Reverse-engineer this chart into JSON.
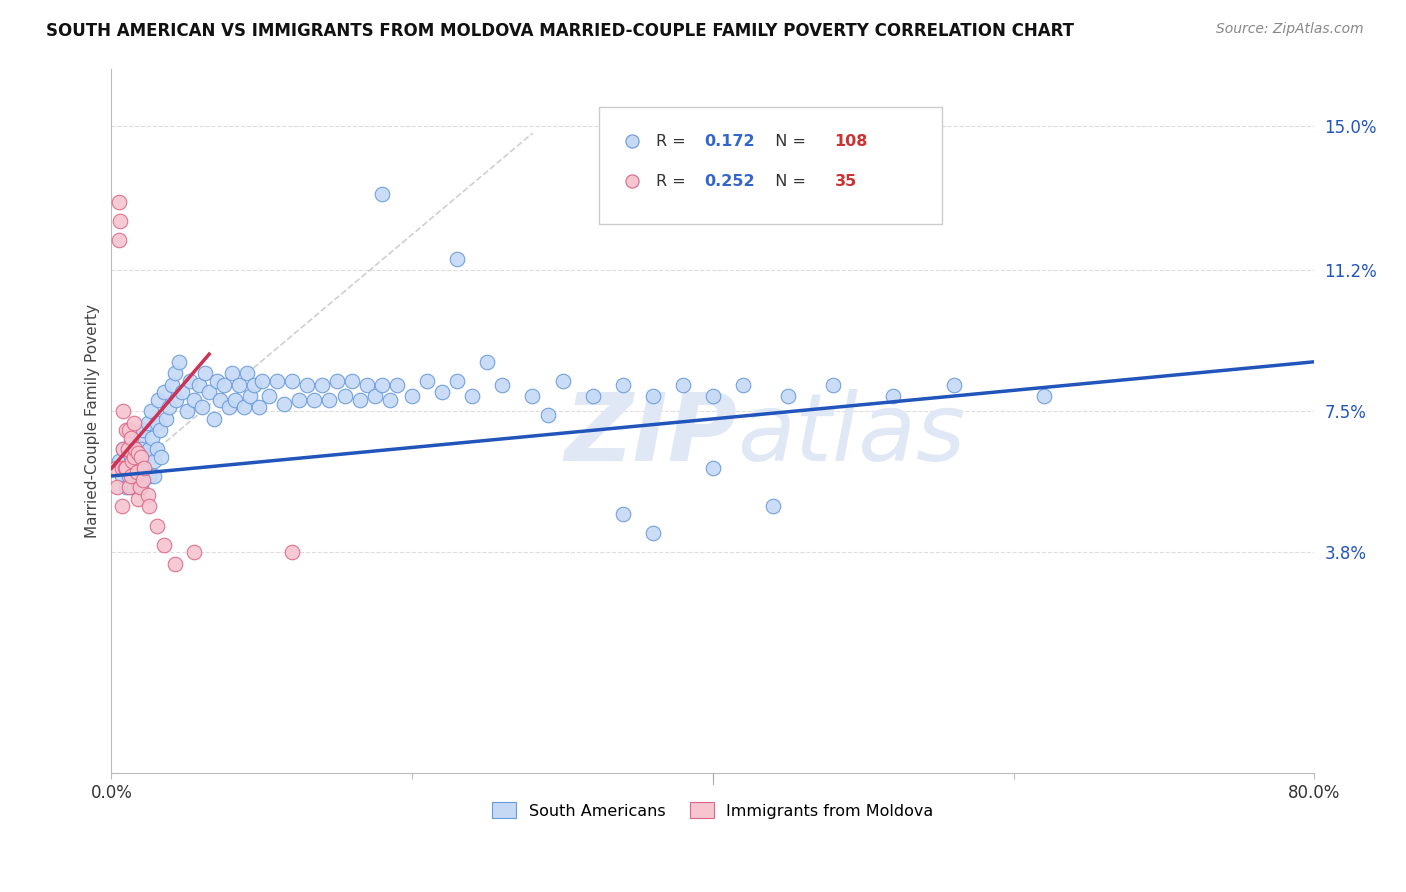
{
  "title": "SOUTH AMERICAN VS IMMIGRANTS FROM MOLDOVA MARRIED-COUPLE FAMILY POVERTY CORRELATION CHART",
  "source": "Source: ZipAtlas.com",
  "ylabel": "Married-Couple Family Poverty",
  "ytick_labels": [
    "15.0%",
    "11.2%",
    "7.5%",
    "3.8%"
  ],
  "ytick_values": [
    0.15,
    0.112,
    0.075,
    0.038
  ],
  "xmin": 0.0,
  "xmax": 0.8,
  "ymin": -0.02,
  "ymax": 0.165,
  "legend_blue_R": "0.172",
  "legend_blue_N": "108",
  "legend_pink_R": "0.252",
  "legend_pink_N": "35",
  "blue_fill_color": "#c5d9f5",
  "blue_edge_color": "#6699dd",
  "pink_fill_color": "#f5c5d0",
  "pink_edge_color": "#dd6688",
  "blue_line_color": "#2255bb",
  "pink_line_color": "#cc3355",
  "gray_dash_color": "#cccccc",
  "watermark_color": "#e0e8f5",
  "legend_text_blue_R": "#3366cc",
  "legend_text_blue_N": "#cc3333",
  "legend_text_pink_R": "#3366cc",
  "legend_text_pink_N": "#cc3333",
  "blue_regression_x0": 0.0,
  "blue_regression_x1": 0.8,
  "blue_regression_y0": 0.058,
  "blue_regression_y1": 0.088,
  "pink_regression_x0": 0.0,
  "pink_regression_x1": 0.065,
  "pink_regression_y0": 0.06,
  "pink_regression_y1": 0.09,
  "blue_scatter_x": [
    0.005,
    0.007,
    0.008,
    0.01,
    0.01,
    0.012,
    0.013,
    0.013,
    0.014,
    0.015,
    0.015,
    0.016,
    0.017,
    0.018,
    0.018,
    0.019,
    0.02,
    0.02,
    0.02,
    0.021,
    0.022,
    0.023,
    0.024,
    0.025,
    0.025,
    0.026,
    0.027,
    0.028,
    0.028,
    0.03,
    0.03,
    0.031,
    0.032,
    0.033,
    0.035,
    0.036,
    0.038,
    0.04,
    0.042,
    0.043,
    0.045,
    0.047,
    0.05,
    0.052,
    0.055,
    0.058,
    0.06,
    0.062,
    0.065,
    0.068,
    0.07,
    0.072,
    0.075,
    0.078,
    0.08,
    0.082,
    0.085,
    0.088,
    0.09,
    0.092,
    0.095,
    0.098,
    0.1,
    0.105,
    0.11,
    0.115,
    0.12,
    0.125,
    0.13,
    0.135,
    0.14,
    0.145,
    0.15,
    0.155,
    0.16,
    0.165,
    0.17,
    0.175,
    0.18,
    0.185,
    0.19,
    0.2,
    0.21,
    0.22,
    0.23,
    0.24,
    0.26,
    0.28,
    0.3,
    0.32,
    0.34,
    0.36,
    0.38,
    0.4,
    0.42,
    0.45,
    0.48,
    0.52,
    0.56,
    0.62,
    0.34,
    0.36,
    0.23,
    0.44,
    0.18,
    0.25,
    0.29,
    0.4
  ],
  "blue_scatter_y": [
    0.062,
    0.058,
    0.065,
    0.055,
    0.06,
    0.058,
    0.063,
    0.055,
    0.067,
    0.06,
    0.055,
    0.065,
    0.058,
    0.062,
    0.056,
    0.068,
    0.06,
    0.065,
    0.055,
    0.07,
    0.063,
    0.058,
    0.072,
    0.065,
    0.058,
    0.075,
    0.068,
    0.062,
    0.058,
    0.072,
    0.065,
    0.078,
    0.07,
    0.063,
    0.08,
    0.073,
    0.076,
    0.082,
    0.085,
    0.078,
    0.088,
    0.08,
    0.075,
    0.083,
    0.078,
    0.082,
    0.076,
    0.085,
    0.08,
    0.073,
    0.083,
    0.078,
    0.082,
    0.076,
    0.085,
    0.078,
    0.082,
    0.076,
    0.085,
    0.079,
    0.082,
    0.076,
    0.083,
    0.079,
    0.083,
    0.077,
    0.083,
    0.078,
    0.082,
    0.078,
    0.082,
    0.078,
    0.083,
    0.079,
    0.083,
    0.078,
    0.082,
    0.079,
    0.082,
    0.078,
    0.082,
    0.079,
    0.083,
    0.08,
    0.083,
    0.079,
    0.082,
    0.079,
    0.083,
    0.079,
    0.082,
    0.079,
    0.082,
    0.079,
    0.082,
    0.079,
    0.082,
    0.079,
    0.082,
    0.079,
    0.048,
    0.043,
    0.115,
    0.05,
    0.132,
    0.088,
    0.074,
    0.06
  ],
  "pink_scatter_x": [
    0.003,
    0.004,
    0.005,
    0.005,
    0.006,
    0.007,
    0.007,
    0.008,
    0.008,
    0.009,
    0.01,
    0.01,
    0.011,
    0.012,
    0.012,
    0.013,
    0.013,
    0.014,
    0.015,
    0.015,
    0.016,
    0.017,
    0.018,
    0.018,
    0.019,
    0.02,
    0.021,
    0.022,
    0.024,
    0.025,
    0.03,
    0.035,
    0.042,
    0.055,
    0.12
  ],
  "pink_scatter_y": [
    0.06,
    0.055,
    0.13,
    0.12,
    0.125,
    0.06,
    0.05,
    0.075,
    0.065,
    0.06,
    0.07,
    0.06,
    0.065,
    0.07,
    0.055,
    0.068,
    0.058,
    0.062,
    0.072,
    0.063,
    0.065,
    0.059,
    0.064,
    0.052,
    0.055,
    0.063,
    0.057,
    0.06,
    0.053,
    0.05,
    0.045,
    0.04,
    0.035,
    0.038,
    0.038
  ]
}
